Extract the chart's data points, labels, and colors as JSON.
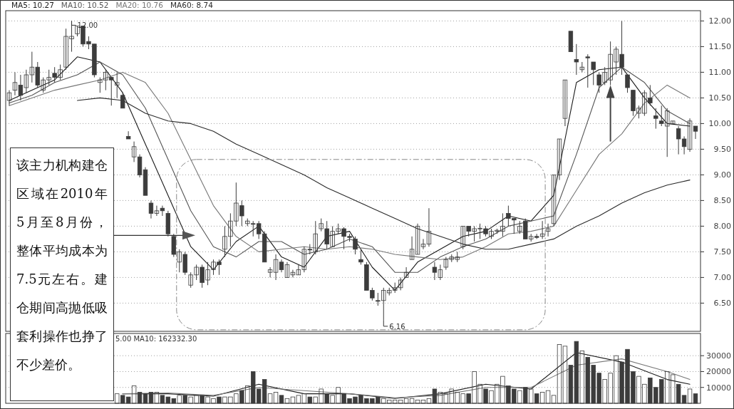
{
  "chart_data": [
    {
      "type": "candlestick",
      "color": "#3c3c3c",
      "grid": "y",
      "legend": "top left",
      "ylim": [
        5.95,
        12.2
      ],
      "yticks": [
        {
          "value": 6.5,
          "label": "6.50"
        },
        {
          "value": 7,
          "label": "7.00"
        },
        {
          "value": 7.5,
          "label": "7.50"
        },
        {
          "value": 8,
          "label": "8.00"
        },
        {
          "value": 8.5,
          "label": "8.50"
        },
        {
          "value": 9,
          "label": "9.00"
        },
        {
          "value": 9.5,
          "label": "9.50"
        },
        {
          "value": 10,
          "label": "10.00"
        },
        {
          "value": 10.5,
          "label": "10.50"
        },
        {
          "value": 11,
          "label": "11.00"
        },
        {
          "value": 11.5,
          "label": "11.50"
        },
        {
          "value": 12,
          "label": "12.00"
        }
      ],
      "categories": [
        null,
        null,
        null,
        null,
        null,
        null,
        null,
        null,
        null,
        null,
        null,
        null,
        null,
        null,
        null,
        null,
        null,
        null,
        null,
        null,
        null,
        null,
        null,
        null,
        null,
        null,
        null,
        null,
        null,
        null,
        null,
        null,
        null,
        null,
        null,
        null,
        null,
        null,
        null,
        null,
        null,
        null,
        null,
        null,
        null,
        null,
        null,
        null,
        null,
        null,
        null,
        null,
        null,
        null,
        null,
        null,
        null,
        null,
        null,
        null,
        null,
        null,
        null,
        null,
        null,
        null,
        null,
        null,
        null,
        null,
        null,
        null,
        null,
        null,
        null,
        null,
        null,
        null,
        null,
        null,
        null,
        null,
        null,
        null,
        null,
        null,
        null,
        null,
        null,
        null,
        null,
        null,
        null,
        null,
        null,
        null,
        null,
        null,
        null,
        null,
        null,
        null,
        null,
        null,
        null,
        null,
        null,
        null,
        null,
        null,
        null,
        null,
        null,
        null,
        null,
        null,
        null,
        null,
        null,
        null,
        null,
        null
      ],
      "ohlc": [
        [
          10.45,
          10.65,
          10.35,
          10.6
        ],
        [
          10.65,
          11.0,
          10.55,
          10.8
        ],
        [
          10.75,
          10.95,
          10.45,
          10.55
        ],
        [
          10.7,
          11.05,
          10.6,
          10.95
        ],
        [
          10.95,
          11.4,
          10.8,
          11.1
        ],
        [
          11.1,
          11.2,
          10.7,
          10.75
        ],
        [
          10.65,
          10.9,
          10.6,
          10.85
        ],
        [
          10.85,
          11.05,
          10.75,
          10.9
        ],
        [
          10.98,
          11.1,
          10.8,
          10.9
        ],
        [
          10.9,
          11.15,
          10.85,
          11.05
        ],
        [
          11.1,
          11.85,
          11.05,
          11.7
        ],
        [
          11.65,
          12.0,
          11.4,
          11.7
        ],
        [
          11.75,
          11.9,
          11.7,
          11.9
        ],
        [
          11.9,
          11.9,
          11.5,
          11.55
        ],
        [
          11.6,
          11.7,
          11.45,
          11.55
        ],
        [
          11.55,
          11.55,
          10.9,
          10.95
        ],
        [
          10.8,
          10.9,
          10.6,
          10.85
        ],
        [
          10.85,
          11.05,
          10.65,
          11.0
        ],
        [
          10.9,
          10.9,
          10.35,
          10.85
        ],
        [
          10.75,
          11.0,
          10.5,
          10.8
        ],
        [
          10.55,
          10.6,
          10.3,
          10.3
        ],
        [
          9.75,
          9.85,
          9.7,
          9.7
        ],
        [
          9.35,
          9.65,
          9.25,
          9.55
        ],
        [
          9.35,
          9.4,
          8.95,
          9.0
        ],
        [
          9.1,
          9.15,
          8.6,
          8.6
        ],
        [
          8.45,
          8.5,
          8.15,
          8.25
        ],
        [
          8.25,
          8.4,
          8.2,
          8.3
        ],
        [
          8.35,
          8.4,
          8.2,
          8.3
        ],
        [
          8.25,
          8.3,
          7.8,
          7.85
        ],
        [
          7.8,
          7.85,
          7.4,
          7.45
        ],
        [
          7.3,
          7.55,
          7.1,
          7.5
        ],
        [
          7.45,
          7.5,
          7.05,
          7.1
        ],
        [
          6.85,
          7.1,
          6.8,
          7.05
        ],
        [
          7.05,
          7.25,
          6.95,
          7.2
        ],
        [
          7.2,
          7.25,
          6.8,
          6.9
        ],
        [
          6.95,
          7.3,
          6.85,
          7.15
        ],
        [
          7.15,
          7.35,
          7.05,
          7.3
        ],
        [
          7.3,
          7.35,
          7.05,
          7.25
        ],
        [
          7.55,
          8.0,
          7.4,
          7.8
        ],
        [
          7.8,
          8.25,
          7.6,
          8.1
        ],
        [
          8.1,
          8.85,
          8.0,
          8.45
        ],
        [
          8.4,
          8.5,
          8.0,
          8.2
        ],
        [
          8.05,
          8.15,
          8.0,
          8.1
        ],
        [
          8.05,
          8.1,
          7.8,
          8.05
        ],
        [
          8.05,
          8.1,
          7.75,
          7.85
        ],
        [
          7.85,
          7.9,
          7.3,
          7.3
        ],
        [
          7.1,
          7.2,
          7.0,
          7.15
        ],
        [
          7.1,
          7.45,
          6.95,
          7.35
        ],
        [
          7.3,
          7.35,
          7.1,
          7.15
        ],
        [
          7.0,
          7.3,
          7.0,
          7.25
        ],
        [
          7.05,
          7.15,
          7.0,
          7.1
        ],
        [
          7.05,
          7.25,
          7.05,
          7.15
        ],
        [
          7.15,
          7.6,
          7.1,
          7.55
        ],
        [
          7.55,
          7.65,
          7.45,
          7.55
        ],
        [
          7.5,
          8.1,
          7.45,
          7.85
        ],
        [
          7.95,
          8.15,
          7.9,
          8.05
        ],
        [
          7.95,
          8.1,
          7.55,
          7.65
        ],
        [
          7.6,
          8.0,
          7.6,
          7.9
        ],
        [
          7.9,
          8.05,
          7.85,
          7.95
        ],
        [
          7.95,
          7.98,
          7.55,
          7.8
        ],
        [
          7.8,
          7.85,
          7.7,
          7.78
        ],
        [
          7.75,
          7.8,
          7.45,
          7.55
        ],
        [
          7.35,
          7.55,
          7.25,
          7.3
        ],
        [
          7.25,
          7.3,
          6.75,
          6.75
        ],
        [
          6.75,
          6.8,
          6.55,
          6.6
        ],
        [
          6.55,
          6.7,
          6.45,
          6.55
        ],
        [
          6.55,
          6.8,
          6.16,
          6.75
        ],
        [
          6.7,
          6.8,
          6.65,
          6.75
        ],
        [
          6.75,
          6.9,
          6.7,
          6.8
        ],
        [
          6.8,
          7.0,
          6.75,
          6.95
        ],
        [
          7.0,
          7.2,
          7.0,
          7.1
        ],
        [
          7.35,
          7.8,
          7.35,
          7.55
        ],
        [
          7.45,
          8.05,
          7.45,
          8.0
        ],
        [
          7.6,
          7.75,
          7.55,
          7.65
        ],
        [
          7.65,
          8.35,
          7.6,
          7.9
        ],
        [
          7.2,
          7.3,
          6.95,
          7.1
        ],
        [
          7.0,
          7.25,
          6.95,
          7.15
        ],
        [
          7.2,
          7.4,
          7.15,
          7.35
        ],
        [
          7.35,
          7.45,
          7.3,
          7.4
        ],
        [
          7.35,
          7.5,
          7.3,
          7.4
        ],
        [
          7.6,
          8.0,
          7.55,
          8.0
        ],
        [
          8.0,
          8.0,
          7.8,
          7.9
        ],
        [
          7.9,
          8.0,
          7.7,
          7.95
        ],
        [
          7.95,
          8.05,
          7.75,
          7.96
        ],
        [
          7.95,
          8.0,
          7.8,
          7.85
        ],
        [
          7.8,
          7.95,
          7.75,
          7.9
        ],
        [
          7.9,
          7.95,
          7.85,
          7.92
        ],
        [
          7.9,
          8.25,
          7.8,
          8.0
        ],
        [
          8.25,
          8.4,
          8.0,
          8.15
        ],
        [
          8.15,
          8.15,
          7.85,
          8.12
        ],
        [
          7.9,
          8.1,
          7.85,
          8.0
        ],
        [
          8.1,
          8.15,
          7.75,
          7.75
        ],
        [
          7.75,
          7.85,
          7.7,
          7.8
        ],
        [
          7.8,
          7.85,
          7.75,
          7.78
        ],
        [
          7.8,
          8.1,
          7.75,
          7.85
        ],
        [
          7.9,
          8.05,
          7.8,
          7.95
        ],
        [
          8.05,
          9.0,
          8.0,
          9.0
        ],
        [
          9.0,
          9.7,
          8.9,
          9.7
        ],
        [
          10.1,
          10.85,
          9.95,
          10.85
        ],
        [
          11.8,
          11.8,
          11.4,
          11.4
        ],
        [
          11.25,
          11.55,
          10.95,
          11.2
        ],
        [
          11.05,
          11.2,
          11.0,
          11.1
        ],
        [
          11.3,
          11.35,
          10.7,
          11.28
        ],
        [
          11.2,
          11.2,
          10.75,
          11.05
        ],
        [
          10.95,
          11.0,
          10.6,
          10.75
        ],
        [
          10.8,
          11.1,
          10.75,
          11.0
        ],
        [
          10.85,
          11.6,
          10.75,
          11.35
        ],
        [
          11.2,
          11.5,
          10.95,
          11.45
        ],
        [
          11.35,
          12.0,
          10.95,
          11.1
        ],
        [
          10.95,
          10.95,
          10.6,
          10.7
        ],
        [
          10.65,
          10.65,
          10.15,
          10.25
        ],
        [
          10.2,
          10.35,
          10.1,
          10.3
        ],
        [
          10.2,
          10.65,
          10.15,
          10.6
        ],
        [
          10.5,
          10.75,
          10.35,
          10.4
        ],
        [
          10.15,
          10.3,
          9.9,
          10.1
        ],
        [
          10.05,
          10.35,
          9.95,
          10.0
        ],
        [
          9.95,
          10.3,
          9.35,
          10.25
        ],
        [
          10.0,
          10.05,
          10.0,
          10.05
        ],
        [
          9.9,
          9.95,
          9.4,
          9.7
        ],
        [
          9.7,
          9.75,
          9.4,
          9.55
        ],
        [
          9.5,
          10.1,
          9.45,
          10.05
        ],
        [
          9.95,
          9.95,
          9.7,
          9.85
        ]
      ],
      "series": [
        {
          "type": "line",
          "name": "MA5: 10.27",
          "color": "#1a1a1a",
          "values": [
            10.45,
            null,
            null,
            null,
            10.65,
            null,
            null,
            null,
            10.85,
            null,
            null,
            null,
            11.3,
            null,
            null,
            null,
            11.2,
            null,
            null,
            null,
            10.6,
            null,
            null,
            null,
            9.6,
            null,
            null,
            null,
            8.6,
            null,
            null,
            null,
            7.6,
            null,
            null,
            null,
            7.15,
            null,
            null,
            null,
            7.7,
            null,
            null,
            null,
            8.0,
            null,
            null,
            null,
            7.4,
            null,
            null,
            null,
            7.2,
            null,
            null,
            null,
            7.8,
            null,
            null,
            null,
            7.9,
            null,
            null,
            null,
            7.2,
            null,
            null,
            null,
            6.75,
            null,
            null,
            null,
            7.3,
            null,
            null,
            null,
            7.55,
            null,
            null,
            null,
            7.8,
            null,
            null,
            null,
            7.9,
            null,
            null,
            null,
            8.2,
            null,
            null,
            null,
            8.1,
            null,
            null,
            null,
            8.6,
            null,
            null,
            null,
            10.8,
            null,
            null,
            null,
            11.05,
            null,
            null,
            null,
            11.1,
            null,
            null,
            null,
            10.5,
            null,
            null,
            null,
            10.0,
            null,
            null,
            null,
            9.95,
            null
          ]
        },
        {
          "type": "line",
          "name": "MA10: 10.52",
          "color": "#555555",
          "values": [
            10.4,
            null,
            null,
            null,
            10.55,
            null,
            null,
            null,
            10.8,
            null,
            null,
            null,
            10.95,
            null,
            null,
            null,
            11.2,
            null,
            null,
            null,
            10.95,
            null,
            null,
            null,
            10.3,
            null,
            null,
            null,
            9.3,
            null,
            null,
            null,
            8.3,
            null,
            null,
            null,
            7.6,
            null,
            null,
            null,
            7.4,
            null,
            null,
            null,
            7.7,
            null,
            null,
            null,
            7.7,
            null,
            null,
            null,
            7.45,
            null,
            null,
            null,
            7.55,
            null,
            null,
            null,
            7.75,
            null,
            null,
            null,
            7.6,
            null,
            null,
            null,
            7.1,
            null,
            null,
            null,
            7.1,
            null,
            null,
            null,
            7.4,
            null,
            null,
            null,
            7.6,
            null,
            null,
            null,
            7.75,
            null,
            null,
            null,
            8.0,
            null,
            null,
            null,
            8.1,
            null,
            null,
            null,
            8.2,
            null,
            null,
            null,
            9.4,
            null,
            null,
            null,
            10.7,
            null,
            null,
            null,
            11.1,
            null,
            null,
            null,
            10.8,
            null,
            null,
            null,
            10.25,
            null,
            null,
            null,
            10.0,
            null
          ]
        },
        {
          "type": "line",
          "name": "MA20: 10.76",
          "color": "#777777",
          "values": [
            10.35,
            null,
            null,
            null,
            10.5,
            null,
            null,
            null,
            10.65,
            null,
            null,
            null,
            10.75,
            null,
            null,
            null,
            10.85,
            null,
            null,
            null,
            11.0,
            null,
            null,
            null,
            10.8,
            null,
            null,
            null,
            10.2,
            null,
            null,
            null,
            9.3,
            null,
            null,
            null,
            8.4,
            null,
            null,
            null,
            7.8,
            null,
            null,
            null,
            7.5,
            null,
            null,
            null,
            7.55,
            null,
            null,
            null,
            7.6,
            null,
            null,
            null,
            7.55,
            null,
            null,
            null,
            7.6,
            null,
            null,
            null,
            7.55,
            null,
            null,
            null,
            7.45,
            null,
            null,
            null,
            7.4,
            null,
            null,
            null,
            7.35,
            null,
            null,
            null,
            7.4,
            null,
            null,
            null,
            7.6,
            null,
            null,
            null,
            7.85,
            null,
            null,
            null,
            7.9,
            null,
            null,
            null,
            8.0,
            null,
            null,
            null,
            8.7,
            null,
            null,
            null,
            9.4,
            null,
            null,
            null,
            9.8,
            null,
            null,
            null,
            10.4,
            null,
            null,
            null,
            10.75,
            null,
            null,
            null,
            10.5,
            null
          ]
        },
        {
          "type": "line",
          "name": "MA60: 8.74",
          "color": "#2a2a2a",
          "values": [
            null,
            null,
            null,
            null,
            null,
            null,
            null,
            null,
            null,
            null,
            null,
            null,
            10.45,
            null,
            null,
            null,
            10.5,
            null,
            null,
            null,
            10.45,
            null,
            null,
            null,
            10.2,
            null,
            null,
            null,
            10.05,
            null,
            null,
            null,
            10.0,
            null,
            null,
            null,
            9.85,
            null,
            null,
            null,
            9.6,
            null,
            null,
            null,
            9.4,
            null,
            null,
            null,
            9.2,
            null,
            null,
            null,
            9.0,
            null,
            null,
            null,
            8.75,
            null,
            null,
            null,
            8.55,
            null,
            null,
            null,
            8.35,
            null,
            null,
            null,
            8.15,
            null,
            null,
            null,
            7.95,
            null,
            null,
            null,
            7.8,
            null,
            null,
            null,
            7.65,
            null,
            null,
            null,
            7.55,
            null,
            null,
            null,
            7.55,
            null,
            null,
            null,
            7.65,
            null,
            null,
            null,
            7.75,
            null,
            null,
            null,
            8.0,
            null,
            null,
            null,
            8.2,
            null,
            null,
            null,
            8.45,
            null,
            null,
            null,
            8.65,
            null,
            null,
            null,
            8.8,
            null,
            null,
            null,
            8.9,
            null
          ]
        }
      ],
      "annotations": [
        "该主力机构建仓区域在2010年5月至8月份，整体平均成本为7.5元左右。建仓期间高抛低吸套利操作也挣了不少差价。",
        "12.00",
        "6.16"
      ]
    },
    {
      "type": "bar",
      "grid": "y",
      "ylim": [
        0,
        44000
      ],
      "yticks": [
        10000,
        20000,
        30000
      ],
      "categories": [
        null,
        null,
        null,
        null,
        null,
        null,
        null,
        null,
        null,
        null,
        null,
        null,
        null,
        null,
        null,
        null,
        null,
        null,
        null,
        null,
        null,
        null,
        null,
        null,
        null,
        null,
        null,
        null,
        null,
        null,
        null,
        null,
        null,
        null,
        null,
        null,
        null,
        null,
        null,
        null,
        null,
        null,
        null,
        null,
        null,
        null,
        null,
        null,
        null,
        null,
        null,
        null,
        null,
        null,
        null,
        null,
        null,
        null,
        null,
        null,
        null,
        null,
        null,
        null,
        null,
        null,
        null,
        null,
        null,
        null,
        null,
        null,
        null,
        null,
        null,
        null,
        null,
        null,
        null,
        null,
        null,
        null,
        null,
        null,
        null,
        null,
        null,
        null,
        null,
        null,
        null,
        null,
        null,
        null,
        null,
        null,
        null,
        null,
        null,
        null,
        null,
        null,
        null,
        null,
        null,
        null,
        null,
        null,
        null,
        null,
        null,
        null,
        null,
        null,
        null,
        null,
        null,
        null,
        null,
        null,
        null,
        null
      ],
      "series": [
        {
          "type": "bar",
          "color": "#3c3c3c",
          "values": [
            null,
            null,
            null,
            null,
            null,
            null,
            null,
            null,
            null,
            null,
            null,
            null,
            null,
            null,
            null,
            null,
            null,
            null,
            null,
            6000,
            5000,
            4000,
            11000,
            7000,
            6000,
            7000,
            7000,
            5000,
            4000,
            3000,
            5000,
            5000,
            4000,
            5000,
            5000,
            4000,
            3000,
            4000,
            4000,
            4000,
            6000,
            8000,
            11000,
            20000,
            9000,
            15000,
            6000,
            7000,
            5000,
            3000,
            4000,
            5000,
            6000,
            4000,
            4000,
            9000,
            6000,
            5000,
            10000,
            6000,
            3000,
            4000,
            5000,
            3000,
            3000,
            4000,
            3000,
            2000,
            2000,
            2000,
            3000,
            3000,
            2000,
            2000,
            3000,
            9000,
            7000,
            6000,
            9000,
            7000,
            6000,
            6000,
            20000,
            12000,
            9000,
            8000,
            12000,
            17000,
            11000,
            9000,
            8000,
            10000,
            9000,
            6000,
            7000,
            8000,
            5000,
            37000,
            36000,
            24000,
            39000,
            33000,
            29000,
            24000,
            19000,
            15000,
            19000,
            30000,
            26000,
            34000,
            20000,
            17000,
            12000,
            16000,
            10000,
            15000,
            20000,
            18000,
            12000,
            5000,
            9000,
            6000
          ]
        },
        {
          "type": "line",
          "color": "#1a1a1a",
          "values": [
            null,
            null,
            null,
            null,
            null,
            null,
            null,
            null,
            null,
            null,
            null,
            null,
            null,
            null,
            null,
            null,
            null,
            null,
            null,
            null,
            6000,
            null,
            null,
            null,
            null,
            null,
            null,
            null,
            6000,
            null,
            null,
            null,
            null,
            null,
            null,
            null,
            4500,
            null,
            null,
            null,
            null,
            null,
            null,
            null,
            12000,
            null,
            null,
            null,
            null,
            null,
            null,
            null,
            6000,
            null,
            null,
            null,
            null,
            null,
            null,
            null,
            6000,
            null,
            null,
            null,
            null,
            null,
            null,
            null,
            3000,
            null,
            null,
            null,
            null,
            null,
            null,
            null,
            6000,
            null,
            null,
            null,
            null,
            null,
            null,
            null,
            12000,
            null,
            null,
            null,
            null,
            null,
            null,
            null,
            9000,
            null,
            null,
            null,
            null,
            null,
            null,
            null,
            32000,
            null,
            null,
            null,
            null,
            null,
            null,
            null,
            26000,
            null,
            null,
            null,
            null,
            null,
            null,
            null,
            15000,
            null,
            null,
            null,
            12000,
            null
          ]
        },
        {
          "type": "line",
          "color": "#777777",
          "values": [
            null,
            null,
            null,
            null,
            null,
            null,
            null,
            null,
            null,
            null,
            null,
            null,
            null,
            null,
            null,
            null,
            null,
            null,
            null,
            null,
            6000,
            null,
            null,
            null,
            null,
            null,
            null,
            null,
            6500,
            null,
            null,
            null,
            null,
            null,
            null,
            null,
            5000,
            null,
            null,
            null,
            null,
            null,
            null,
            null,
            10000,
            null,
            null,
            null,
            null,
            null,
            null,
            null,
            8000,
            null,
            null,
            null,
            null,
            null,
            null,
            null,
            6000,
            null,
            null,
            null,
            null,
            null,
            null,
            null,
            3500,
            null,
            null,
            null,
            null,
            null,
            null,
            null,
            5000,
            null,
            null,
            null,
            null,
            null,
            null,
            null,
            10000,
            null,
            null,
            null,
            null,
            null,
            null,
            null,
            10000,
            null,
            null,
            null,
            null,
            null,
            null,
            null,
            24000,
            null,
            null,
            null,
            null,
            null,
            null,
            null,
            28000,
            null,
            null,
            null,
            null,
            null,
            null,
            null,
            20000,
            null,
            null,
            null,
            15000,
            null
          ]
        }
      ],
      "annotations": [
        "5.00 MA10: 162332.30"
      ]
    }
  ]
}
